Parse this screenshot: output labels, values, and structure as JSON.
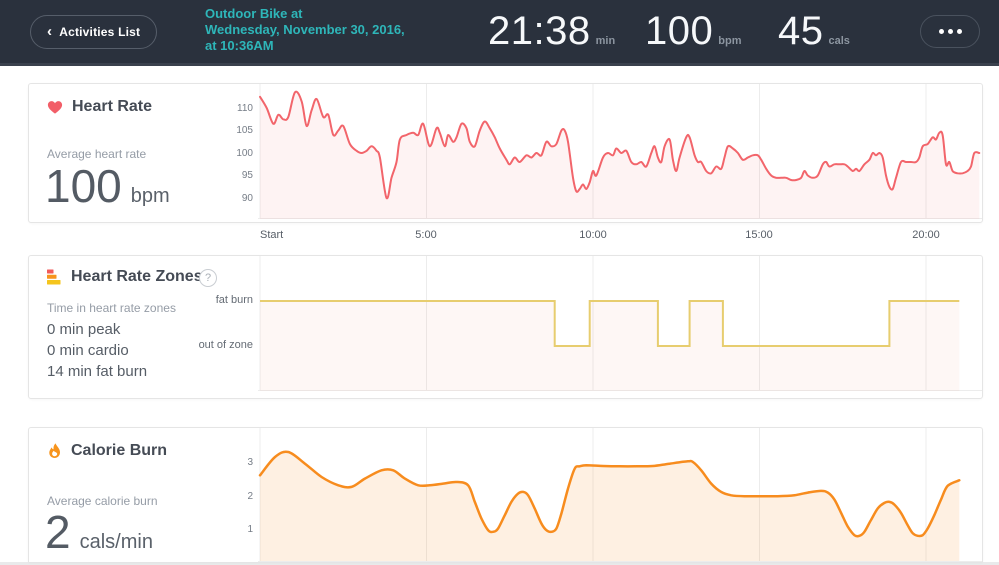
{
  "header": {
    "back_button": {
      "chevron": "‹",
      "label": "Activities List"
    },
    "activity_title_lines": [
      "Outdoor Bike at",
      "Wednesday, November 30, 2016,",
      "at 10:36AM"
    ],
    "stats": [
      {
        "value": "21:38",
        "unit": "min"
      },
      {
        "value": "100",
        "unit": "bpm"
      },
      {
        "value": "45",
        "unit": "cals"
      }
    ],
    "menu_icon": "ellipsis",
    "colors": {
      "background": "#2A313D",
      "accent_teal": "#2EB6B9"
    }
  },
  "x_axis": {
    "labels": [
      "Start",
      "5:00",
      "10:00",
      "15:00",
      "20:00"
    ],
    "minutes": [
      0,
      5,
      10,
      15,
      20
    ]
  },
  "panels": {
    "heart_rate": {
      "title": "Heart Rate",
      "stat_label": "Average heart rate",
      "stat_value": "100",
      "stat_unit": "bpm",
      "y_ticks": [
        "110",
        "105",
        "100",
        "95",
        "90"
      ]
    },
    "heart_rate_zones": {
      "title": "Heart Rate Zones",
      "help": "?",
      "stat_label": "Time in heart rate zones",
      "zone_stats": [
        "0 min peak",
        "0 min cardio",
        "14 min fat burn"
      ],
      "y_labels": [
        "fat burn",
        "out of zone"
      ]
    },
    "calorie_burn": {
      "title": "Calorie Burn",
      "stat_label": "Average calorie burn",
      "stat_value": "2",
      "stat_unit": "cals/min",
      "y_ticks": [
        "3",
        "2",
        "1"
      ]
    }
  },
  "chart_data": [
    {
      "id": "heart_rate",
      "type": "line",
      "series_name": "Heart rate (bpm)",
      "x_unit": "minutes",
      "x_range": [
        0,
        21.63
      ],
      "x_tick_minutes": [
        0,
        5,
        10,
        15,
        20
      ],
      "x_tick_labels": [
        "Start",
        "5:00",
        "10:00",
        "15:00",
        "20:00"
      ],
      "y_ticks": [
        110,
        105,
        100,
        95,
        90
      ],
      "ylim": [
        85.5,
        115.5
      ],
      "line_color": "#F2656B",
      "fill_color": "rgba(242,101,107,0.08)",
      "grid": "vertical-only",
      "points": [
        [
          0,
          112.5
        ],
        [
          0.2,
          110
        ],
        [
          0.4,
          106.5
        ],
        [
          0.55,
          108.5
        ],
        [
          0.7,
          107.5
        ],
        [
          0.85,
          108
        ],
        [
          1.05,
          113.5
        ],
        [
          1.25,
          111.5
        ],
        [
          1.4,
          106
        ],
        [
          1.55,
          109.5
        ],
        [
          1.7,
          112
        ],
        [
          1.9,
          108
        ],
        [
          2.05,
          108.5
        ],
        [
          2.2,
          104
        ],
        [
          2.35,
          105
        ],
        [
          2.5,
          106
        ],
        [
          2.7,
          102
        ],
        [
          2.9,
          100.5
        ],
        [
          3.05,
          100
        ],
        [
          3.2,
          100.5
        ],
        [
          3.35,
          101.5
        ],
        [
          3.5,
          100.5
        ],
        [
          3.6,
          99
        ],
        [
          3.8,
          90
        ],
        [
          3.95,
          94.5
        ],
        [
          4.1,
          98
        ],
        [
          4.2,
          103
        ],
        [
          4.4,
          104
        ],
        [
          4.6,
          104.5
        ],
        [
          4.75,
          104
        ],
        [
          4.9,
          106.5
        ],
        [
          5.1,
          101.5
        ],
        [
          5.3,
          105.5
        ],
        [
          5.4,
          104.5
        ],
        [
          5.55,
          101.5
        ],
        [
          5.65,
          104
        ],
        [
          5.8,
          102.5
        ],
        [
          5.9,
          103.5
        ],
        [
          6.05,
          106.5
        ],
        [
          6.2,
          105.5
        ],
        [
          6.3,
          102.5
        ],
        [
          6.45,
          101.5
        ],
        [
          6.6,
          105
        ],
        [
          6.75,
          107
        ],
        [
          6.9,
          105.5
        ],
        [
          7.05,
          103.5
        ],
        [
          7.2,
          101
        ],
        [
          7.4,
          98.5
        ],
        [
          7.5,
          97.5
        ],
        [
          7.65,
          99
        ],
        [
          7.8,
          98
        ],
        [
          8,
          99.5
        ],
        [
          8.15,
          99
        ],
        [
          8.3,
          100
        ],
        [
          8.45,
          99.5
        ],
        [
          8.6,
          102.5
        ],
        [
          8.75,
          101.5
        ],
        [
          8.9,
          102
        ],
        [
          9.05,
          105
        ],
        [
          9.15,
          105
        ],
        [
          9.25,
          102.5
        ],
        [
          9.4,
          94.5
        ],
        [
          9.5,
          91.5
        ],
        [
          9.6,
          92
        ],
        [
          9.7,
          93
        ],
        [
          9.8,
          92
        ],
        [
          9.9,
          93.5
        ],
        [
          10,
          96
        ],
        [
          10.1,
          95
        ],
        [
          10.3,
          99
        ],
        [
          10.45,
          100
        ],
        [
          10.6,
          99.5
        ],
        [
          10.7,
          101
        ],
        [
          10.85,
          100
        ],
        [
          11,
          100.5
        ],
        [
          11.15,
          98
        ],
        [
          11.3,
          97.5
        ],
        [
          11.45,
          98
        ],
        [
          11.6,
          97
        ],
        [
          11.75,
          100
        ],
        [
          11.85,
          101.5
        ],
        [
          11.95,
          99
        ],
        [
          12.05,
          98
        ],
        [
          12.15,
          101.5
        ],
        [
          12.3,
          103
        ],
        [
          12.4,
          98.5
        ],
        [
          12.5,
          96
        ],
        [
          12.6,
          99
        ],
        [
          12.8,
          103.5
        ],
        [
          12.9,
          103.5
        ],
        [
          13.05,
          99.5
        ],
        [
          13.15,
          98
        ],
        [
          13.25,
          98
        ],
        [
          13.4,
          96
        ],
        [
          13.55,
          95.5
        ],
        [
          13.7,
          97
        ],
        [
          13.85,
          96.5
        ],
        [
          13.95,
          99
        ],
        [
          14.05,
          101.5
        ],
        [
          14.2,
          101
        ],
        [
          14.35,
          100
        ],
        [
          14.5,
          98.5
        ],
        [
          14.65,
          99
        ],
        [
          14.8,
          99.5
        ],
        [
          14.95,
          99.5
        ],
        [
          15.05,
          98.5
        ],
        [
          15.2,
          96.5
        ],
        [
          15.35,
          95
        ],
        [
          15.5,
          94.5
        ],
        [
          15.65,
          94.5
        ],
        [
          15.8,
          94.5
        ],
        [
          15.95,
          94
        ],
        [
          16.1,
          94
        ],
        [
          16.25,
          94.5
        ],
        [
          16.35,
          96
        ],
        [
          16.45,
          95
        ],
        [
          16.6,
          94.5
        ],
        [
          16.75,
          95
        ],
        [
          16.9,
          97.5
        ],
        [
          17,
          98
        ],
        [
          17.1,
          97
        ],
        [
          17.25,
          97.5
        ],
        [
          17.4,
          97.5
        ],
        [
          17.55,
          97.5
        ],
        [
          17.65,
          97
        ],
        [
          17.8,
          96
        ],
        [
          17.9,
          96.5
        ],
        [
          18,
          96
        ],
        [
          18.15,
          97.5
        ],
        [
          18.3,
          98.5
        ],
        [
          18.4,
          100
        ],
        [
          18.5,
          99.5
        ],
        [
          18.6,
          100
        ],
        [
          18.7,
          99
        ],
        [
          18.8,
          95
        ],
        [
          18.9,
          92.5
        ],
        [
          19,
          92
        ],
        [
          19.1,
          94.5
        ],
        [
          19.25,
          98
        ],
        [
          19.4,
          98
        ],
        [
          19.55,
          98
        ],
        [
          19.7,
          98
        ],
        [
          19.8,
          99
        ],
        [
          19.9,
          101.5
        ],
        [
          20.05,
          102
        ],
        [
          20.2,
          103.5
        ],
        [
          20.3,
          103
        ],
        [
          20.4,
          104.5
        ],
        [
          20.5,
          104
        ],
        [
          20.6,
          97.5
        ],
        [
          20.7,
          98
        ],
        [
          20.8,
          96
        ],
        [
          20.95,
          95.5
        ],
        [
          21.1,
          95.5
        ],
        [
          21.25,
          96
        ],
        [
          21.35,
          97
        ],
        [
          21.45,
          100
        ],
        [
          21.6,
          100
        ]
      ]
    },
    {
      "id": "heart_rate_zones",
      "type": "step",
      "series_name": "Heart rate zone over time",
      "x_unit": "minutes",
      "x_range": [
        0,
        21
      ],
      "categories": [
        "fat burn",
        "out of zone"
      ],
      "line_color": "#E7CD6F",
      "fill_color": "rgba(233,116,82,0.06)",
      "segments": [
        {
          "zone": "fat burn",
          "start": 0,
          "end": 8.85
        },
        {
          "zone": "out of zone",
          "start": 8.85,
          "end": 9.9
        },
        {
          "zone": "fat burn",
          "start": 9.9,
          "end": 11.95
        },
        {
          "zone": "out of zone",
          "start": 11.95,
          "end": 12.9
        },
        {
          "zone": "fat burn",
          "start": 12.9,
          "end": 13.9
        },
        {
          "zone": "out of zone",
          "start": 13.9,
          "end": 18.9
        },
        {
          "zone": "fat burn",
          "start": 18.9,
          "end": 21
        }
      ],
      "totals": {
        "peak_min": 0,
        "cardio_min": 0,
        "fat_burn_min": 14
      }
    },
    {
      "id": "calorie_burn",
      "type": "area",
      "series_name": "Calories burned per minute",
      "x_unit": "minutes",
      "x_range": [
        0,
        21
      ],
      "y_ticks": [
        3,
        2,
        1
      ],
      "ylim": [
        0,
        4
      ],
      "line_color": "#F78C1E",
      "fill_color": "rgba(247,140,30,0.13)",
      "points": [
        [
          0,
          2.6
        ],
        [
          0.45,
          3.15
        ],
        [
          0.85,
          3.3
        ],
        [
          1.35,
          2.95
        ],
        [
          1.85,
          2.55
        ],
        [
          2.35,
          2.3
        ],
        [
          2.75,
          2.25
        ],
        [
          3.15,
          2.5
        ],
        [
          3.65,
          2.75
        ],
        [
          4,
          2.75
        ],
        [
          4.35,
          2.5
        ],
        [
          4.75,
          2.3
        ],
        [
          5.1,
          2.3
        ],
        [
          5.5,
          2.35
        ],
        [
          5.9,
          2.4
        ],
        [
          6.25,
          2.3
        ],
        [
          6.45,
          1.8
        ],
        [
          6.65,
          1.3
        ],
        [
          6.85,
          0.95
        ],
        [
          7,
          0.9
        ],
        [
          7.15,
          1
        ],
        [
          7.35,
          1.4
        ],
        [
          7.55,
          1.8
        ],
        [
          7.75,
          2.05
        ],
        [
          7.9,
          2.1
        ],
        [
          8.05,
          2
        ],
        [
          8.25,
          1.6
        ],
        [
          8.45,
          1.15
        ],
        [
          8.6,
          0.95
        ],
        [
          8.75,
          0.9
        ],
        [
          8.9,
          1
        ],
        [
          9.05,
          1.45
        ],
        [
          9.25,
          2.2
        ],
        [
          9.45,
          2.8
        ],
        [
          9.6,
          2.87
        ],
        [
          9.8,
          2.9
        ],
        [
          10.3,
          2.88
        ],
        [
          10.8,
          2.87
        ],
        [
          11.3,
          2.87
        ],
        [
          11.8,
          2.88
        ],
        [
          12.3,
          2.95
        ],
        [
          12.85,
          3.02
        ],
        [
          13,
          3
        ],
        [
          13.25,
          2.75
        ],
        [
          13.55,
          2.35
        ],
        [
          13.85,
          2.1
        ],
        [
          14.15,
          2
        ],
        [
          14.55,
          1.97
        ],
        [
          15.05,
          1.97
        ],
        [
          15.55,
          1.97
        ],
        [
          16.05,
          2
        ],
        [
          16.45,
          2.08
        ],
        [
          16.85,
          2.13
        ],
        [
          17.05,
          2.08
        ],
        [
          17.25,
          1.87
        ],
        [
          17.45,
          1.47
        ],
        [
          17.65,
          1.06
        ],
        [
          17.85,
          0.8
        ],
        [
          18,
          0.78
        ],
        [
          18.15,
          0.9
        ],
        [
          18.35,
          1.26
        ],
        [
          18.55,
          1.6
        ],
        [
          18.75,
          1.77
        ],
        [
          18.9,
          1.8
        ],
        [
          19.05,
          1.72
        ],
        [
          19.25,
          1.47
        ],
        [
          19.45,
          1.1
        ],
        [
          19.6,
          0.86
        ],
        [
          19.75,
          0.78
        ],
        [
          19.9,
          0.8
        ],
        [
          20.05,
          1
        ],
        [
          20.25,
          1.4
        ],
        [
          20.45,
          1.87
        ],
        [
          20.65,
          2.28
        ],
        [
          21,
          2.45
        ]
      ]
    }
  ]
}
